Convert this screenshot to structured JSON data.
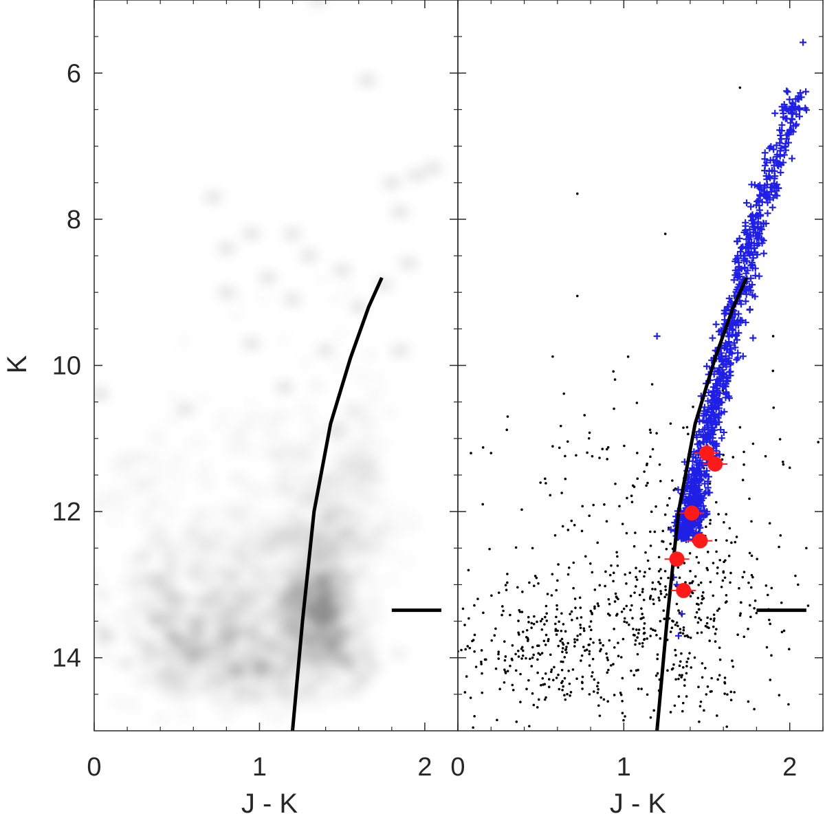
{
  "chart_data": [
    {
      "panel": "left",
      "type": "heatmap",
      "title": "",
      "xlabel": "J - K",
      "ylabel": "K",
      "xlim": [
        0,
        2.2
      ],
      "ylim": [
        15,
        5
      ],
      "y_reversed": true,
      "xticks": [
        0,
        1,
        2
      ],
      "xtick_labels": [
        "0",
        "1",
        "2"
      ],
      "yticks": [
        6,
        8,
        10,
        12,
        14
      ],
      "ytick_labels": [
        "6",
        "8",
        "10",
        "12",
        "14"
      ],
      "grid": false,
      "colormap": "grayscale (white = low density, black = high density)",
      "density_blobs": [
        {
          "x": 1.35,
          "y": 13.5,
          "sx": 0.12,
          "sy": 0.35,
          "w": 0.95
        },
        {
          "x": 1.38,
          "y": 13.0,
          "sx": 0.12,
          "sy": 0.3,
          "w": 0.65
        },
        {
          "x": 1.38,
          "y": 12.4,
          "sx": 0.14,
          "sy": 0.35,
          "w": 0.55
        },
        {
          "x": 1.45,
          "y": 11.8,
          "sx": 0.14,
          "sy": 0.35,
          "w": 0.4
        },
        {
          "x": 1.55,
          "y": 11.0,
          "sx": 0.13,
          "sy": 0.4,
          "w": 0.3
        },
        {
          "x": 0.6,
          "y": 13.8,
          "sx": 0.25,
          "sy": 0.35,
          "w": 0.8
        },
        {
          "x": 0.85,
          "y": 13.8,
          "sx": 0.2,
          "sy": 0.35,
          "w": 0.6
        },
        {
          "x": 0.5,
          "y": 13.2,
          "sx": 0.22,
          "sy": 0.35,
          "w": 0.45
        },
        {
          "x": 0.9,
          "y": 13.1,
          "sx": 0.22,
          "sy": 0.35,
          "w": 0.45
        },
        {
          "x": 0.55,
          "y": 12.5,
          "sx": 0.25,
          "sy": 0.3,
          "w": 0.35
        },
        {
          "x": 1.0,
          "y": 12.4,
          "sx": 0.2,
          "sy": 0.35,
          "w": 0.35
        },
        {
          "x": 0.8,
          "y": 14.3,
          "sx": 0.35,
          "sy": 0.3,
          "w": 0.4
        },
        {
          "x": 1.2,
          "y": 14.2,
          "sx": 0.2,
          "sy": 0.3,
          "w": 0.45
        },
        {
          "x": 1.5,
          "y": 14.0,
          "sx": 0.15,
          "sy": 0.3,
          "w": 0.45
        },
        {
          "x": 0.3,
          "y": 11.5,
          "sx": 0.15,
          "sy": 0.3,
          "w": 0.2
        },
        {
          "x": 1.0,
          "y": 11.2,
          "sx": 0.25,
          "sy": 0.4,
          "w": 0.25
        },
        {
          "x": 1.7,
          "y": 12.5,
          "sx": 0.15,
          "sy": 0.4,
          "w": 0.2
        },
        {
          "x": 1.1,
          "y": 10.4,
          "sx": 0.4,
          "sy": 0.5,
          "w": 0.12
        },
        {
          "x": 1.4,
          "y": 9.5,
          "sx": 0.35,
          "sy": 0.6,
          "w": 0.08
        }
      ],
      "isolated_points": [
        {
          "x": 1.35,
          "y": 5.0
        },
        {
          "x": 1.65,
          "y": 6.1
        },
        {
          "x": 2.05,
          "y": 7.3
        },
        {
          "x": 1.8,
          "y": 7.5
        },
        {
          "x": 1.95,
          "y": 7.4
        },
        {
          "x": 0.72,
          "y": 7.7
        },
        {
          "x": 1.85,
          "y": 7.9
        },
        {
          "x": 0.95,
          "y": 8.2
        },
        {
          "x": 1.2,
          "y": 8.2
        },
        {
          "x": 0.8,
          "y": 8.4
        },
        {
          "x": 1.3,
          "y": 8.5
        },
        {
          "x": 1.9,
          "y": 8.6
        },
        {
          "x": 1.5,
          "y": 8.7
        },
        {
          "x": 1.05,
          "y": 8.8
        },
        {
          "x": 1.75,
          "y": 8.9
        },
        {
          "x": 0.8,
          "y": 9.0
        },
        {
          "x": 1.2,
          "y": 9.1
        },
        {
          "x": 1.6,
          "y": 9.2
        },
        {
          "x": 0.95,
          "y": 9.7
        },
        {
          "x": 1.4,
          "y": 9.8
        },
        {
          "x": 1.85,
          "y": 9.8
        },
        {
          "x": 0.03,
          "y": 10.4
        },
        {
          "x": 0.55,
          "y": 10.6
        },
        {
          "x": 1.15,
          "y": 10.3
        }
      ],
      "isochrone": {
        "color": "#000000",
        "points": [
          [
            1.2,
            15.0
          ],
          [
            1.26,
            13.5
          ],
          [
            1.33,
            12.0
          ],
          [
            1.43,
            10.8
          ],
          [
            1.55,
            9.9
          ],
          [
            1.66,
            9.2
          ],
          [
            1.74,
            8.8
          ]
        ]
      },
      "marker_bar": {
        "x_from": 1.8,
        "x_to": 2.1,
        "y": 13.35
      }
    },
    {
      "panel": "right",
      "type": "scatter",
      "title": "",
      "xlabel": "J - K",
      "ylabel": "",
      "xlim": [
        0,
        2.2
      ],
      "ylim": [
        15,
        5
      ],
      "y_reversed": true,
      "xticks": [
        0,
        1,
        2
      ],
      "xtick_labels": [
        "0",
        "1",
        "2"
      ],
      "grid": false,
      "series": [
        {
          "marker": "dot",
          "color": "#000000",
          "points_sample": [
            [
              1.35,
              4.95
            ],
            [
              1.7,
              6.2
            ],
            [
              0.72,
              7.65
            ],
            [
              1.25,
              8.2
            ],
            [
              0.72,
              9.05
            ],
            [
              1.9,
              9.6
            ],
            [
              0.3,
              10.7
            ],
            [
              0.2,
              11.2
            ],
            [
              0.15,
              11.9
            ],
            [
              0.45,
              12.5
            ],
            [
              0.5,
              13.5
            ],
            [
              0.45,
              14.0
            ],
            [
              0.55,
              14.4
            ],
            [
              0.9,
              14.0
            ],
            [
              1.45,
              14.4
            ],
            [
              1.75,
              14.6
            ],
            [
              2.05,
              13.0
            ],
            [
              2.1,
              12.5
            ],
            [
              2.0,
              11.4
            ],
            [
              0.1,
              14.8
            ]
          ],
          "clouds": [
            {
              "cx": 0.5,
              "cy": 13.9,
              "sx": 0.25,
              "sy": 0.45,
              "n": 200
            },
            {
              "cx": 0.95,
              "cy": 13.6,
              "sx": 0.25,
              "sy": 0.5,
              "n": 140
            },
            {
              "cx": 1.35,
              "cy": 13.2,
              "sx": 0.18,
              "sy": 0.7,
              "n": 170
            },
            {
              "cx": 1.65,
              "cy": 13.3,
              "sx": 0.18,
              "sy": 0.6,
              "n": 70
            },
            {
              "cx": 0.8,
              "cy": 11.8,
              "sx": 0.45,
              "sy": 0.9,
              "n": 90
            },
            {
              "cx": 1.4,
              "cy": 11.6,
              "sx": 0.35,
              "sy": 0.9,
              "n": 60
            },
            {
              "cx": 1.1,
              "cy": 14.4,
              "sx": 0.5,
              "sy": 0.3,
              "n": 60
            }
          ]
        },
        {
          "marker": "plus",
          "color": "#1f1fe6",
          "ridge": {
            "points": [
              [
                1.37,
                12.3
              ],
              [
                1.45,
                11.5
              ],
              [
                1.55,
                10.5
              ],
              [
                1.63,
                9.6
              ],
              [
                1.72,
                8.8
              ],
              [
                1.8,
                8.0
              ],
              [
                1.9,
                7.3
              ],
              [
                2.05,
                6.3
              ]
            ],
            "width": 0.07,
            "count": 950
          },
          "points_sample": [
            [
              2.08,
              5.58
            ],
            [
              2.07,
              6.33
            ],
            [
              2.06,
              6.5
            ],
            [
              2.04,
              6.7
            ],
            [
              1.98,
              6.9
            ],
            [
              1.2,
              9.6
            ],
            [
              1.3,
              12.9
            ],
            [
              1.32,
              13.0
            ],
            [
              1.35,
              13.4
            ],
            [
              1.33,
              13.7
            ]
          ]
        },
        {
          "marker": "circle",
          "color": "#ff1a1a",
          "points": [
            [
              1.5,
              11.2
            ],
            [
              1.55,
              11.35
            ],
            [
              1.41,
              12.02
            ],
            [
              1.46,
              12.4
            ],
            [
              1.32,
              12.65
            ],
            [
              1.36,
              13.08
            ]
          ]
        }
      ],
      "isochrone": {
        "color": "#000000",
        "points": [
          [
            1.2,
            15.0
          ],
          [
            1.26,
            13.5
          ],
          [
            1.33,
            12.0
          ],
          [
            1.43,
            10.8
          ],
          [
            1.55,
            9.9
          ],
          [
            1.66,
            9.2
          ],
          [
            1.74,
            8.8
          ]
        ]
      },
      "marker_bar": {
        "x_from": 1.8,
        "x_to": 2.1,
        "y": 13.35
      }
    }
  ]
}
